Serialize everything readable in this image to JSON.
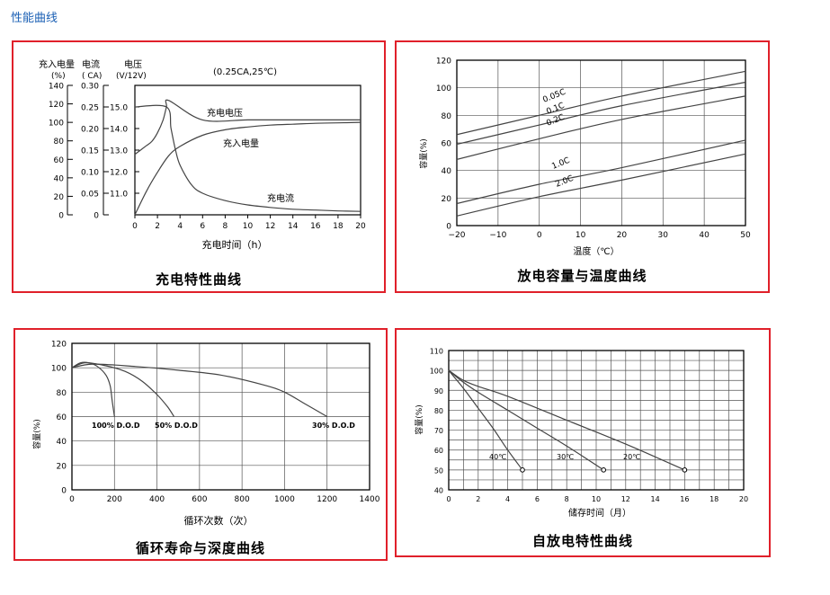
{
  "page_title": "性能曲线",
  "chart_data": [
    {
      "type": "line",
      "title": "充电特性曲线",
      "condition": "(0.25CA,25℃)",
      "xlabel": "充电时间（h）",
      "xlim": [
        0,
        20
      ],
      "xticks": [
        "0",
        "2",
        "4",
        "6",
        "8",
        "10",
        "12",
        "14",
        "16",
        "18",
        "20"
      ],
      "axis_headers": {
        "capacity": [
          "充入电量",
          "(%)"
        ],
        "current": [
          "电流",
          "( CA)"
        ],
        "voltage": [
          "电压",
          "(V/12V)"
        ]
      },
      "capacity_axis": {
        "range": [
          0,
          140
        ],
        "ticks": [
          "140",
          "120",
          "100",
          "80",
          "60",
          "40",
          "20",
          "0"
        ]
      },
      "current_axis": {
        "range": [
          0,
          0.3
        ],
        "ticks": [
          "0.30",
          "0.25",
          "0.20",
          "0.15",
          "0.10",
          "0.05",
          "0"
        ]
      },
      "voltage_axis": {
        "range": [
          10,
          16
        ],
        "ticks": [
          "15.0",
          "14.0",
          "13.0",
          "12.0",
          "11.0"
        ]
      },
      "series": [
        {
          "name": "充电电压",
          "axis": "voltage",
          "x": [
            0,
            0.5,
            1,
            1.5,
            2,
            2.5,
            2.8,
            3,
            6,
            10,
            14,
            18,
            20
          ],
          "y": [
            12.8,
            13.0,
            13.2,
            13.4,
            13.8,
            14.4,
            15.0,
            15.3,
            14.4,
            14.4,
            14.4,
            14.4,
            14.4
          ]
        },
        {
          "name": "充入电量",
          "axis": "capacity",
          "x": [
            0,
            1,
            2,
            3,
            4,
            6,
            8,
            10,
            12,
            14,
            16,
            18,
            20
          ],
          "y": [
            0,
            25,
            46,
            64,
            74,
            86,
            92,
            95,
            97,
            98,
            99,
            99.5,
            100
          ]
        },
        {
          "name": "充电流",
          "axis": "current",
          "x": [
            0,
            2.8,
            3.2,
            3.6,
            4,
            5,
            6,
            8,
            10,
            12,
            14,
            16,
            18,
            20
          ],
          "y": [
            0.25,
            0.25,
            0.2,
            0.15,
            0.115,
            0.07,
            0.05,
            0.033,
            0.023,
            0.017,
            0.013,
            0.011,
            0.009,
            0.008
          ]
        }
      ],
      "series_labels": [
        "充电电压",
        "充入电量",
        "充电流"
      ]
    },
    {
      "type": "line",
      "title": "放电容量与温度曲线",
      "xlabel": "温度（℃）",
      "ylabel": "容量(%)",
      "xlim": [
        -20,
        50
      ],
      "ylim": [
        0,
        120
      ],
      "xticks": [
        "−20",
        "−10",
        "0",
        "10",
        "20",
        "30",
        "40",
        "50"
      ],
      "yticks": [
        "0",
        "20",
        "40",
        "60",
        "80",
        "100",
        "120"
      ],
      "series": [
        {
          "name": "0.05C",
          "x": [
            -20,
            0,
            20,
            50
          ],
          "y": [
            66,
            80,
            94,
            112
          ]
        },
        {
          "name": "0.1C",
          "x": [
            -20,
            0,
            20,
            50
          ],
          "y": [
            59,
            73,
            87,
            104
          ]
        },
        {
          "name": "0.2C",
          "x": [
            -20,
            0,
            20,
            50
          ],
          "y": [
            48,
            63,
            77,
            94
          ]
        },
        {
          "name": "1.0C",
          "x": [
            -20,
            0,
            20,
            50
          ],
          "y": [
            16,
            30,
            42,
            62
          ]
        },
        {
          "name": "2.0C",
          "x": [
            -20,
            0,
            20,
            50
          ],
          "y": [
            7,
            21,
            33,
            52
          ]
        }
      ]
    },
    {
      "type": "line",
      "title": "循环寿命与深度曲线",
      "xlabel": "循环次数（次）",
      "ylabel": "容量(%)",
      "xlim": [
        0,
        1400
      ],
      "ylim": [
        0,
        120
      ],
      "xticks": [
        "0",
        "200",
        "400",
        "600",
        "800",
        "1000",
        "1200",
        "1400"
      ],
      "yticks": [
        "0",
        "20",
        "40",
        "60",
        "80",
        "100",
        "120"
      ],
      "series": [
        {
          "name": "100% D.O.D",
          "x": [
            0,
            40,
            80,
            120,
            160,
            180,
            190,
            200
          ],
          "y": [
            100,
            104,
            104,
            101,
            94,
            85,
            72,
            60
          ]
        },
        {
          "name": "50% D.O.D",
          "x": [
            0,
            60,
            150,
            250,
            330,
            400,
            450,
            480
          ],
          "y": [
            100,
            104,
            102,
            97,
            89,
            78,
            68,
            60
          ]
        },
        {
          "name": "30% D.O.D",
          "x": [
            0,
            100,
            300,
            500,
            700,
            900,
            1000,
            1100,
            1200
          ],
          "y": [
            100,
            103,
            101,
            98,
            94,
            86,
            80,
            70,
            60
          ]
        }
      ],
      "series_labels": [
        "100% D.O.D",
        "50% D.O.D",
        "30% D.O.D"
      ]
    },
    {
      "type": "line",
      "title": "自放电特性曲线",
      "xlabel": "储存时间（月）",
      "ylabel": "容量(%)",
      "xlim": [
        0,
        20
      ],
      "ylim": [
        40,
        110
      ],
      "xticks": [
        "0",
        "2",
        "4",
        "6",
        "8",
        "10",
        "12",
        "14",
        "16",
        "18",
        "20"
      ],
      "yticks": [
        "40",
        "50",
        "60",
        "70",
        "80",
        "90",
        "100",
        "110"
      ],
      "series": [
        {
          "name": "40℃",
          "x": [
            0,
            1,
            2,
            3,
            4,
            5
          ],
          "y": [
            100,
            91,
            81,
            71,
            60,
            50
          ]
        },
        {
          "name": "30℃",
          "x": [
            0,
            1,
            2,
            4,
            6,
            8,
            10.5
          ],
          "y": [
            100,
            94,
            89,
            80,
            71,
            62,
            50
          ]
        },
        {
          "name": "20℃",
          "x": [
            0,
            1,
            2,
            4,
            8,
            12,
            16
          ],
          "y": [
            100,
            95,
            92,
            87,
            75,
            63,
            50
          ]
        }
      ],
      "series_labels": [
        "40℃",
        "30℃",
        "20℃"
      ]
    }
  ]
}
